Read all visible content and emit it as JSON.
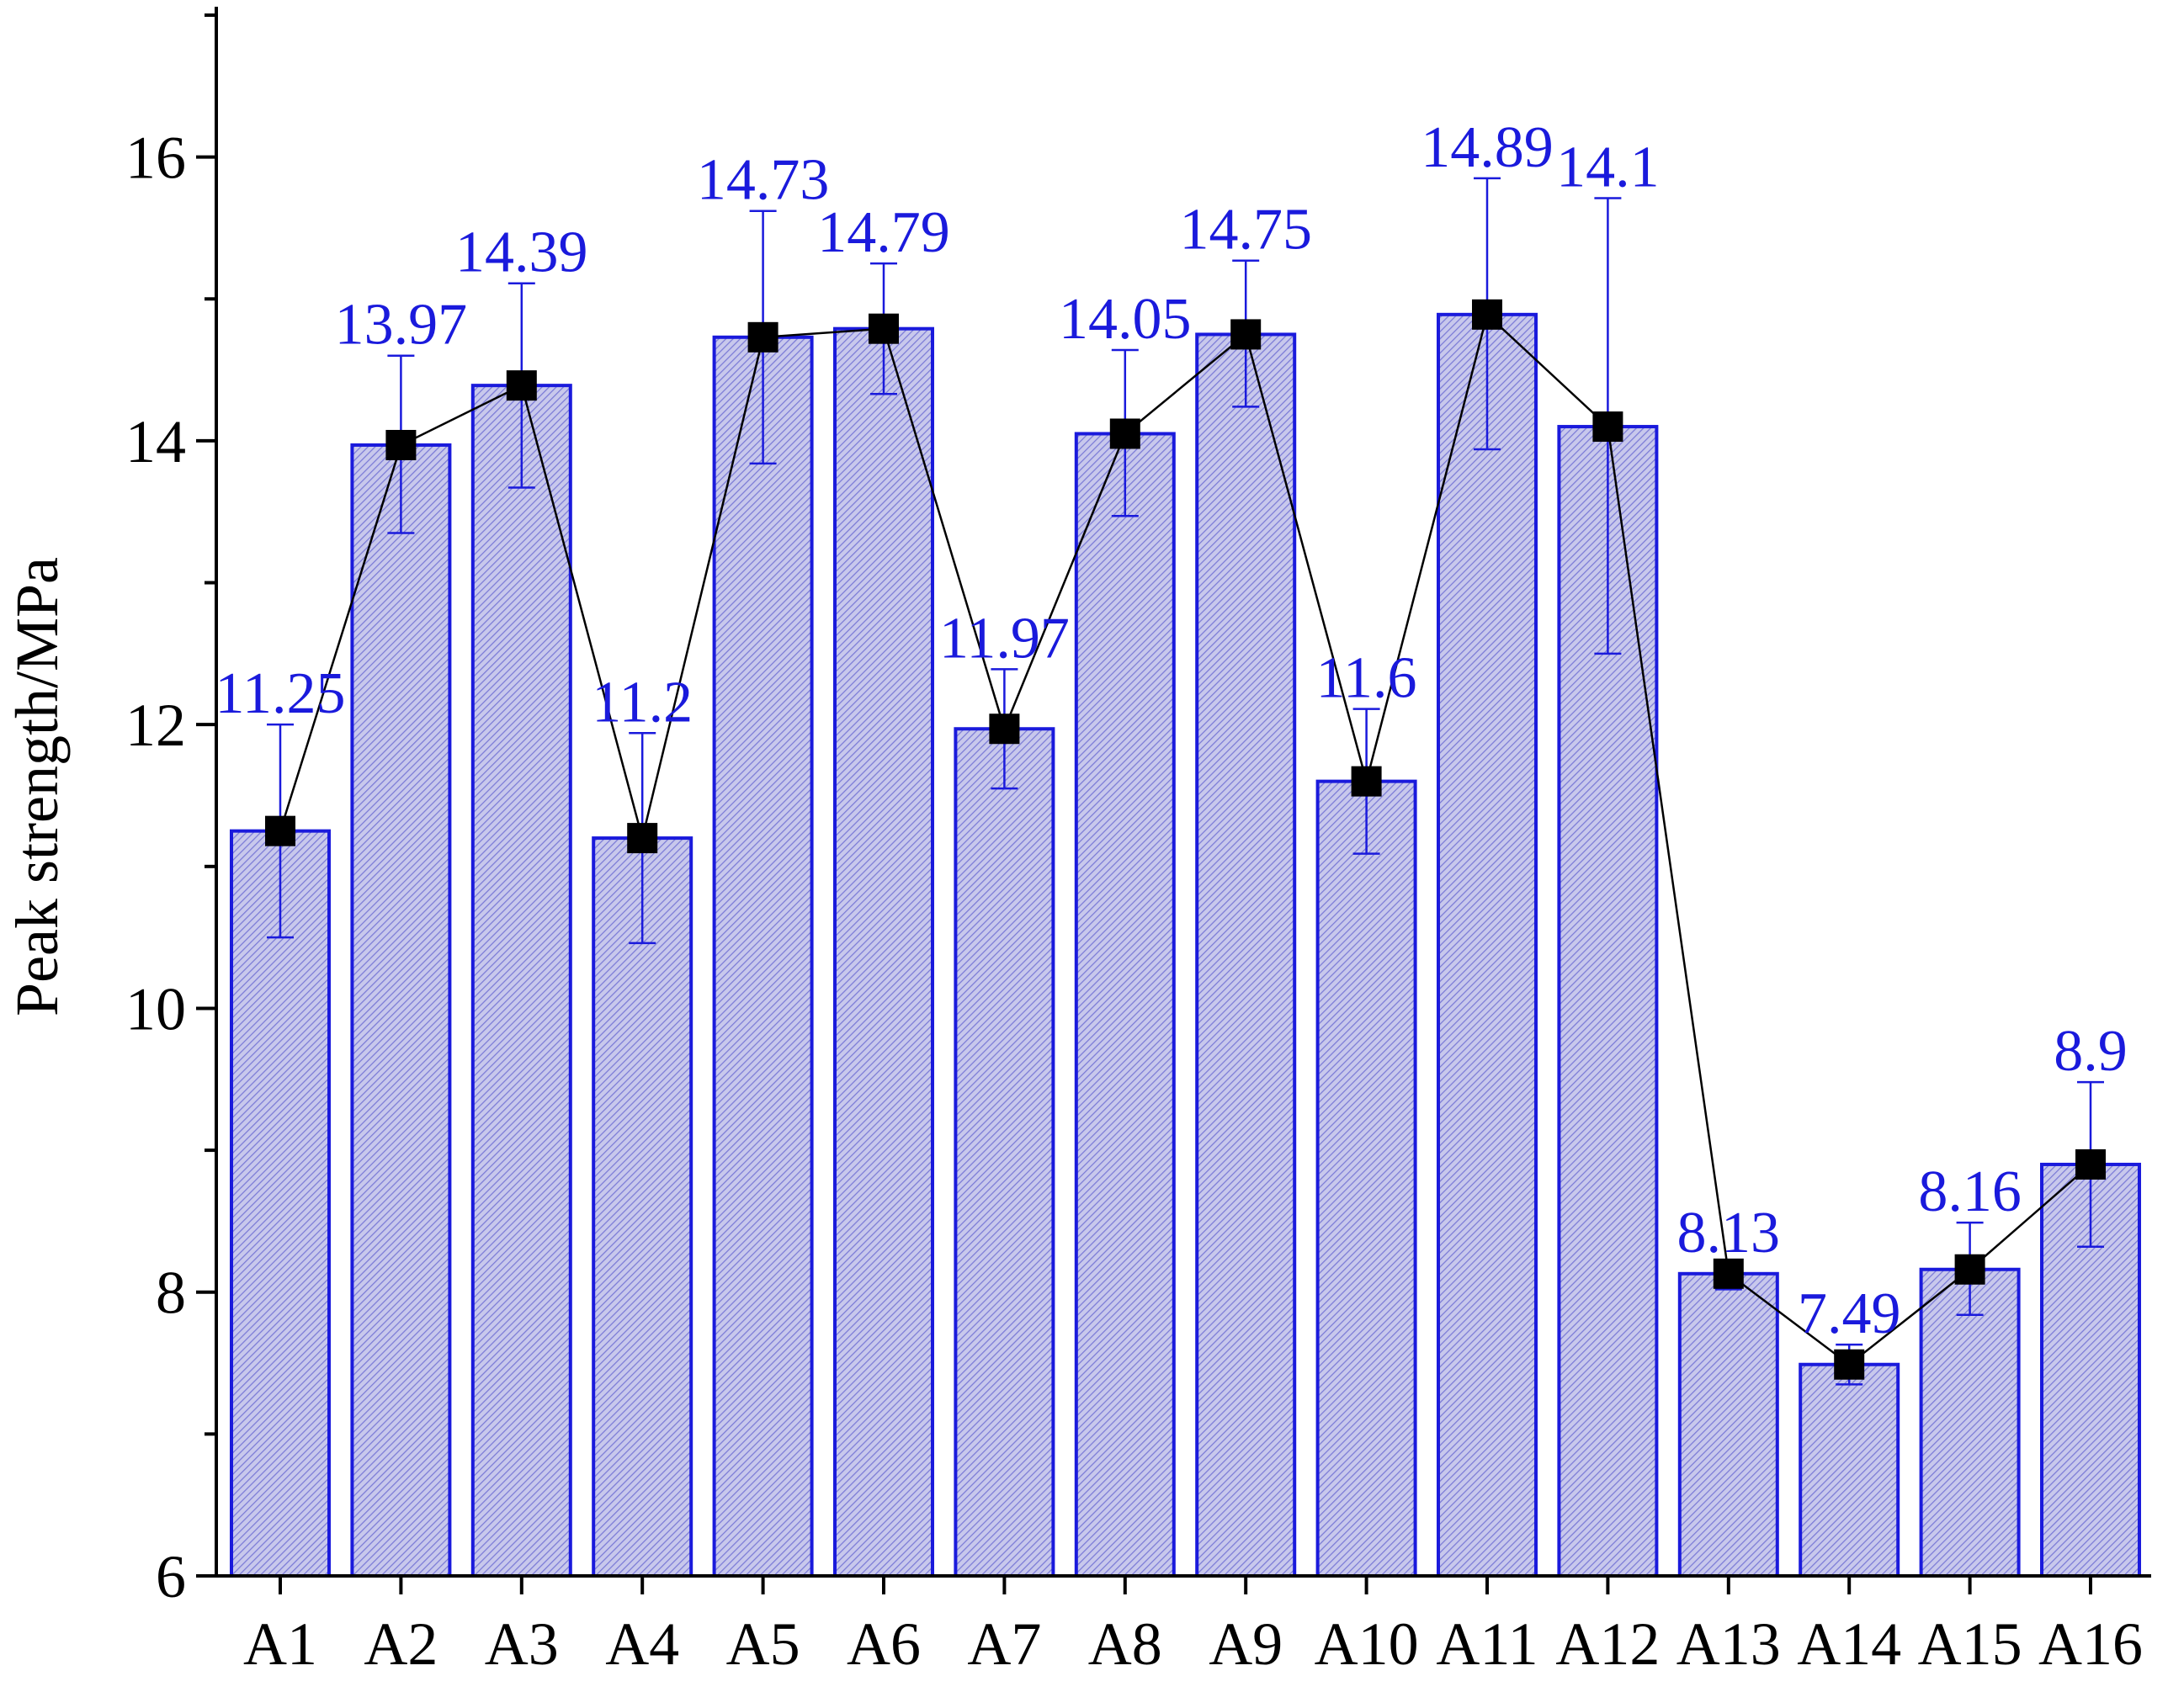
{
  "chart_data": {
    "type": "bar",
    "title": "",
    "xlabel": "",
    "ylabel": "Peak strength/MPa",
    "ylim": [
      6,
      17
    ],
    "yticks": [
      6,
      8,
      10,
      12,
      14,
      16
    ],
    "grid": false,
    "legend": "none",
    "categories": [
      "A1",
      "A2",
      "A3",
      "A4",
      "A5",
      "A6",
      "A7",
      "A8",
      "A9",
      "A10",
      "A11",
      "A12",
      "A13",
      "A14",
      "A15",
      "A16"
    ],
    "values": [
      11.25,
      13.97,
      14.39,
      11.2,
      14.73,
      14.79,
      11.97,
      14.05,
      14.75,
      11.6,
      14.89,
      14.1,
      8.13,
      7.49,
      8.16,
      8.9
    ],
    "value_labels": [
      "11.25",
      "13.97",
      "14.39",
      "11.2",
      "14.73",
      "14.79",
      "11.97",
      "14.05",
      "14.75",
      "11.6",
      "14.89",
      "14.1",
      "8.13",
      "7.49",
      "8.16",
      "8.9"
    ],
    "line_values": [
      11.25,
      13.97,
      14.39,
      11.2,
      14.73,
      14.79,
      11.97,
      14.05,
      14.75,
      11.6,
      14.89,
      14.1,
      8.13,
      7.49,
      8.16,
      8.9
    ],
    "error_low": [
      10.5,
      13.35,
      13.67,
      10.46,
      13.84,
      14.33,
      11.55,
      13.47,
      14.24,
      11.09,
      13.94,
      12.5,
      8.02,
      7.35,
      7.84,
      8.32
    ],
    "error_high": [
      12.0,
      14.6,
      15.11,
      11.94,
      15.62,
      15.25,
      12.39,
      14.64,
      15.27,
      12.11,
      15.85,
      15.71,
      8.2,
      7.63,
      8.49,
      9.48
    ],
    "colors": {
      "bar_fill": "#c8c8ec",
      "bar_hatch": "#7a7ad6",
      "bar_stroke": "#1a1adc",
      "error_bar": "#1a1adc",
      "data_label": "#1a1adc",
      "line": "#000000",
      "marker": "#000000",
      "axis": "#000000"
    }
  }
}
